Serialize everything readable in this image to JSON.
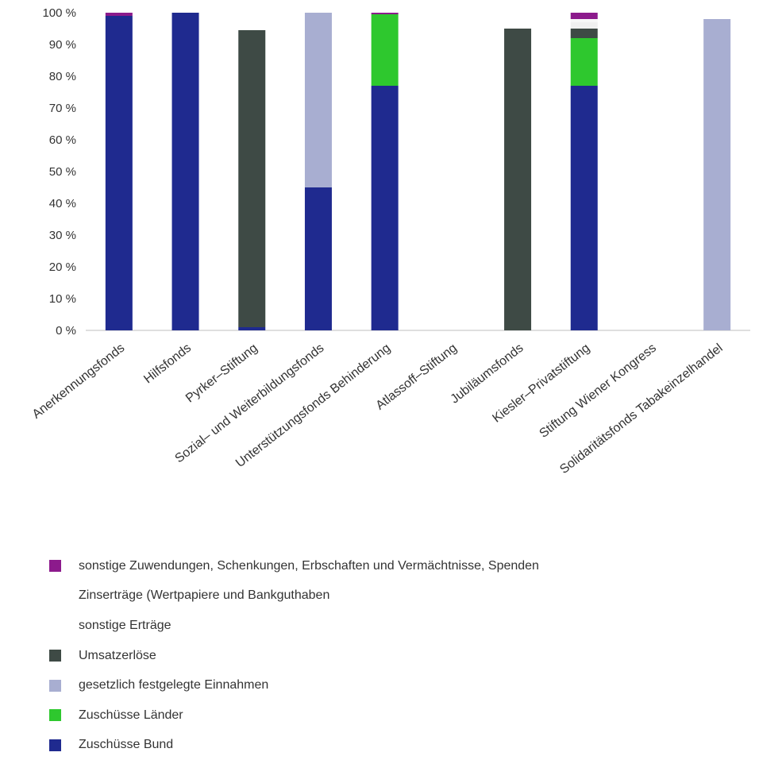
{
  "chart_data": {
    "type": "bar",
    "stacked": true,
    "categories": [
      "Anerkennungsfonds",
      "Hilfsfonds",
      "Pyrker–Stiftung",
      "Sozial– und Weiterbildungsfonds",
      "Unterstützungsfonds Behinderung",
      "Atlassoff–Stiftung",
      "Jubiläumsfonds",
      "Kiesler–Privatstiftung",
      "Stiftung Wiener Kongress",
      "Solidaritätsfonds Tabakeinzelhandel"
    ],
    "series": [
      {
        "name": "Zuschüsse Bund",
        "color": "#1f2a8f",
        "values": [
          99,
          100,
          1,
          45,
          77,
          0,
          0,
          77,
          0,
          0
        ]
      },
      {
        "name": "Zuschüsse Länder",
        "color": "#2ec82e",
        "values": [
          0,
          0,
          0,
          0,
          22.5,
          0,
          0,
          15,
          0,
          0
        ]
      },
      {
        "name": "gesetzlich festgelegte Einnahmen",
        "color": "#a8aed1",
        "values": [
          0,
          0,
          0,
          55,
          0,
          0,
          0,
          0,
          0,
          98
        ]
      },
      {
        "name": "Umsatzerlöse",
        "color": "#3e4a45",
        "values": [
          0,
          0,
          93.5,
          0,
          0,
          0,
          95,
          3,
          0,
          0
        ]
      },
      {
        "name": "sonstige Erträge",
        "color": "#f0f0f0",
        "values": [
          0,
          0,
          0,
          0,
          0,
          0,
          0,
          2,
          0,
          0
        ]
      },
      {
        "name": "Zinserträge (Wertpapiere und Bankguthaben",
        "color": "#f7f7f7",
        "values": [
          0,
          0,
          0,
          0,
          0,
          0,
          0,
          1,
          0,
          0
        ]
      },
      {
        "name": "sonstige Zuwendungen, Schenkungen, Erbschaften und Vermächtnisse, Spenden",
        "color": "#8c1a8c",
        "values": [
          1,
          0,
          0,
          0,
          0.5,
          0,
          0,
          2,
          0,
          0
        ]
      }
    ],
    "legend_order": [
      6,
      5,
      4,
      3,
      2,
      1,
      0
    ],
    "legend_swatch_shown": [
      true,
      false,
      false,
      true,
      true,
      true,
      true
    ],
    "yticks": [
      "0 %",
      "10 %",
      "20 %",
      "30 %",
      "40 %",
      "50 %",
      "60 %",
      "70 %",
      "80 %",
      "90 %",
      "100 %"
    ],
    "ylim": [
      0,
      100
    ],
    "grid": false,
    "legend_position": "bottom",
    "title": "",
    "xlabel": "",
    "ylabel": ""
  }
}
